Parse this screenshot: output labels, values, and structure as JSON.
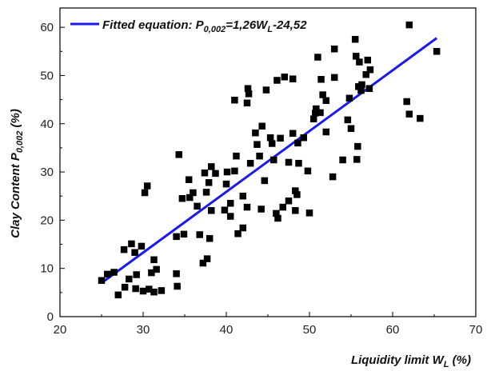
{
  "chart_data": {
    "type": "scatter",
    "xlim": [
      20,
      70
    ],
    "ylim": [
      0,
      64
    ],
    "xticks": [
      20,
      30,
      40,
      50,
      60,
      70
    ],
    "yticks": [
      0,
      10,
      20,
      30,
      40,
      50,
      60
    ],
    "x_tick_labels": [
      "20",
      "30",
      "40",
      "50",
      "60",
      "70"
    ],
    "y_tick_labels": [
      "0",
      "10",
      "20",
      "30",
      "40",
      "50",
      "60"
    ],
    "xlabel": {
      "main": "Liquidity limit W",
      "sub": "L",
      "suffix": " (%)"
    },
    "ylabel": {
      "main": "Clay Content P",
      "sub": "0,002",
      "suffix": " (%)"
    },
    "legend": {
      "placement": "top-left",
      "label": {
        "main": "Fitted equation: P",
        "sub1": "0,002",
        "mid": "=1,26W",
        "sub2": "L",
        "tail": "-24,52"
      }
    },
    "fit_line": {
      "slope": 1.26,
      "intercept": -24.52,
      "x_range": [
        25,
        65.3
      ],
      "color": "#1a1aee"
    },
    "marker_color": "#000000",
    "points": [
      [
        25,
        7.5
      ],
      [
        25.7,
        8.8
      ],
      [
        26.5,
        9.2
      ],
      [
        27,
        4.5
      ],
      [
        27.7,
        13.9
      ],
      [
        27.8,
        6.1
      ],
      [
        28.3,
        7.8
      ],
      [
        28.6,
        15.1
      ],
      [
        29,
        13.3
      ],
      [
        29.1,
        5.8
      ],
      [
        29.2,
        8.7
      ],
      [
        29.8,
        14.6
      ],
      [
        30,
        5.3
      ],
      [
        30.2,
        25.7
      ],
      [
        30.5,
        27.1
      ],
      [
        30.7,
        5.7
      ],
      [
        31,
        9.1
      ],
      [
        31.3,
        11.8
      ],
      [
        31.3,
        5.1
      ],
      [
        31.6,
        9.8
      ],
      [
        32.2,
        5.4
      ],
      [
        34,
        8.9
      ],
      [
        34.1,
        6.3
      ],
      [
        34,
        16.6
      ],
      [
        34.3,
        33.6
      ],
      [
        34.7,
        24.5
      ],
      [
        34.9,
        17.1
      ],
      [
        35.5,
        28.4
      ],
      [
        35.6,
        24.7
      ],
      [
        36,
        25.7
      ],
      [
        36.5,
        22.9
      ],
      [
        36.8,
        17
      ],
      [
        37.2,
        11.1
      ],
      [
        37.4,
        29.8
      ],
      [
        37.6,
        25.8
      ],
      [
        37.7,
        12
      ],
      [
        37.9,
        27.8
      ],
      [
        38,
        16.2
      ],
      [
        38.2,
        22
      ],
      [
        38.2,
        31.1
      ],
      [
        38.7,
        29.7
      ],
      [
        39.8,
        22.1
      ],
      [
        40,
        27.5
      ],
      [
        40.1,
        30
      ],
      [
        40.5,
        20.8
      ],
      [
        40.5,
        23.5
      ],
      [
        41,
        44.9
      ],
      [
        41,
        30.2
      ],
      [
        41.2,
        33.3
      ],
      [
        41.4,
        17.2
      ],
      [
        42,
        18.4
      ],
      [
        42,
        25
      ],
      [
        42.5,
        22.7
      ],
      [
        42.5,
        44.3
      ],
      [
        42.6,
        47.3
      ],
      [
        42.7,
        46.2
      ],
      [
        42.9,
        31.8
      ],
      [
        43.5,
        38.1
      ],
      [
        43.7,
        35.7
      ],
      [
        44,
        33.3
      ],
      [
        44.2,
        22.3
      ],
      [
        44.3,
        39.5
      ],
      [
        44.6,
        28.2
      ],
      [
        44.8,
        47
      ],
      [
        45.3,
        37.1
      ],
      [
        45.5,
        35.9
      ],
      [
        45.7,
        32.5
      ],
      [
        46,
        21.4
      ],
      [
        46.1,
        49
      ],
      [
        46.2,
        20.4
      ],
      [
        46.5,
        37
      ],
      [
        46.8,
        22.7
      ],
      [
        47,
        49.7
      ],
      [
        47.5,
        32
      ],
      [
        47.5,
        24
      ],
      [
        48,
        49.3
      ],
      [
        48,
        38
      ],
      [
        48.3,
        26.1
      ],
      [
        48.3,
        22
      ],
      [
        48.5,
        25.3
      ],
      [
        48.6,
        36
      ],
      [
        48.7,
        31.8
      ],
      [
        49.3,
        37.1
      ],
      [
        49.8,
        30.2
      ],
      [
        50,
        21.5
      ],
      [
        50.5,
        41
      ],
      [
        50.7,
        42.2
      ],
      [
        50.8,
        43.1
      ],
      [
        51,
        53.8
      ],
      [
        51.3,
        42.3
      ],
      [
        51.4,
        49.2
      ],
      [
        51.6,
        46
      ],
      [
        52,
        38.3
      ],
      [
        52,
        44.8
      ],
      [
        52.8,
        29
      ],
      [
        53,
        55.5
      ],
      [
        53,
        49.6
      ],
      [
        54,
        32.5
      ],
      [
        54.6,
        40.8
      ],
      [
        54.8,
        45.3
      ],
      [
        55,
        39
      ],
      [
        55.5,
        57.5
      ],
      [
        55.6,
        54
      ],
      [
        55.7,
        32.6
      ],
      [
        55.8,
        35.3
      ],
      [
        55.9,
        47.7
      ],
      [
        56,
        52.8
      ],
      [
        56.2,
        46.9
      ],
      [
        56.3,
        48.1
      ],
      [
        56.8,
        50.2
      ],
      [
        57,
        53.2
      ],
      [
        57.3,
        51.2
      ],
      [
        57.2,
        47.3
      ],
      [
        61.7,
        44.6
      ],
      [
        62,
        60.5
      ],
      [
        62,
        42
      ],
      [
        63.3,
        41.1
      ],
      [
        65.3,
        55
      ]
    ]
  }
}
